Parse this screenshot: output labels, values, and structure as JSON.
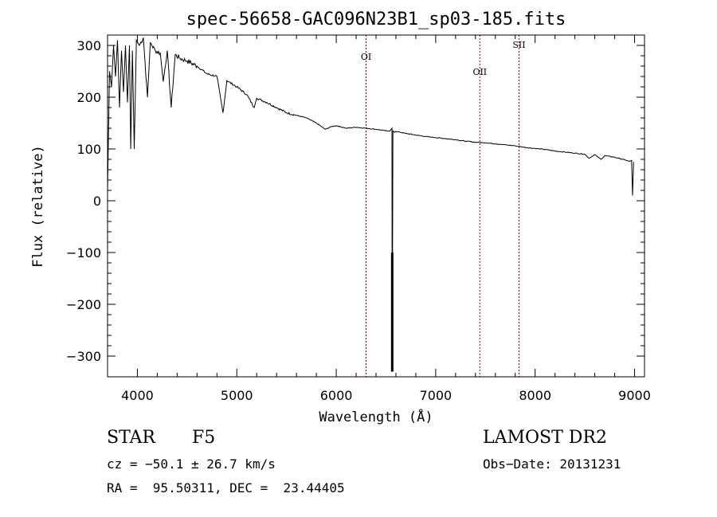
{
  "chart_data": {
    "type": "line",
    "title": "spec-56658-GAC096N23B1_sp03-185.fits",
    "xlabel": "Wavelength (Å)",
    "ylabel": "Flux (relative)",
    "xlim": [
      3700,
      9100
    ],
    "ylim": [
      -340,
      320
    ],
    "xticks": [
      4000,
      5000,
      6000,
      7000,
      8000,
      9000
    ],
    "yticks": [
      -300,
      -200,
      -100,
      0,
      100,
      200,
      300
    ],
    "grid": false,
    "series": [
      {
        "x": [
          3700,
          3720,
          3740,
          3760,
          3780,
          3800,
          3820,
          3840,
          3860,
          3880,
          3900,
          3920,
          3933,
          3950,
          3968,
          3990,
          4020,
          4060,
          4101,
          4130,
          4180,
          4230,
          4260,
          4300,
          4340,
          4380,
          4430,
          4500,
          4600,
          4700,
          4800,
          4861,
          4900,
          5000,
          5100,
          5175,
          5200,
          5300,
          5400,
          5500,
          5600,
          5700,
          5800,
          5890,
          5950,
          6000,
          6100,
          6200,
          6300,
          6400,
          6500,
          6540,
          6560,
          6563,
          6570,
          6590,
          6600,
          6700,
          6800,
          6900,
          7000,
          7100,
          7200,
          7300,
          7400,
          7500,
          7600,
          7700,
          7800,
          7900,
          8000,
          8100,
          8200,
          8300,
          8400,
          8498,
          8542,
          8600,
          8662,
          8700,
          8800,
          8900,
          8950,
          8970,
          8980,
          8990
        ],
        "values": [
          20,
          250,
          220,
          300,
          240,
          310,
          180,
          290,
          210,
          300,
          190,
          300,
          100,
          290,
          100,
          310,
          300,
          315,
          200,
          305,
          290,
          285,
          230,
          290,
          180,
          282,
          275,
          270,
          260,
          245,
          240,
          170,
          232,
          220,
          205,
          180,
          198,
          190,
          180,
          170,
          165,
          160,
          150,
          138,
          143,
          145,
          140,
          142,
          140,
          138,
          135,
          135,
          140,
          -330,
          135,
          132,
          134,
          130,
          127,
          124,
          122,
          120,
          118,
          115,
          113,
          112,
          110,
          108,
          106,
          103,
          101,
          99,
          96,
          94,
          92,
          90,
          82,
          89,
          80,
          87,
          84,
          79,
          76,
          78,
          10,
          75
        ]
      }
    ],
    "reference_lines": [
      {
        "label": "OI",
        "x": 6300
      },
      {
        "label": "OII",
        "x": 7444
      },
      {
        "label": "SII",
        "x": 7838
      }
    ]
  },
  "footer": {
    "class_type": "STAR",
    "subclass": "F5",
    "survey": "LAMOST DR2",
    "cz": "cz = −50.1 ± 26.7 km/s",
    "obs_date": "Obs−Date: 20131231",
    "radec": "RA =  95.50311, DEC =  23.44405"
  },
  "colors": {
    "spectrum": "#000000",
    "reference_line": "#8b0000"
  }
}
